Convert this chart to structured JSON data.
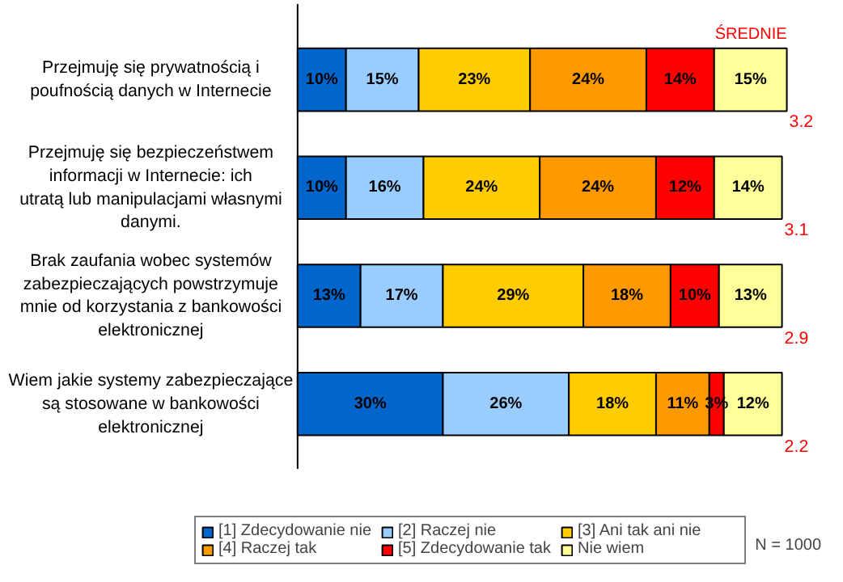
{
  "chart_data": {
    "type": "bar",
    "orientation": "horizontal",
    "stacked": true,
    "tick_labels": "y",
    "legend": "bottom",
    "categories": [
      "Przejmuję się prywatnością i poufnością danych w Internecie",
      "Przejmuję się bezpieczeństwem informacji w Internecie: ich utratą lub manipulacjami własnymi danymi.",
      "Brak zaufania wobec systemów zabezpieczających powstrzymuje mnie od korzystania z bankowości elektronicznej",
      "Wiem jakie systemy zabezpieczające są stosowane w bankowości elektronicznej"
    ],
    "series": [
      {
        "name": "[1] Zdecydowanie nie",
        "color": "#0066cc",
        "values": [
          10,
          10,
          13,
          30
        ],
        "value_labels": [
          "10%",
          "10%",
          "13%",
          "30%"
        ]
      },
      {
        "name": "[2] Raczej nie",
        "color": "#99ccff",
        "values": [
          15,
          16,
          17,
          26
        ],
        "value_labels": [
          "15%",
          "16%",
          "17%",
          "26%"
        ]
      },
      {
        "name": "[3] Ani tak ani nie",
        "color": "#ffcc00",
        "values": [
          23,
          24,
          29,
          18
        ],
        "value_labels": [
          "23%",
          "24%",
          "29%",
          "18%"
        ]
      },
      {
        "name": "[4] Raczej tak",
        "color": "#ff9900",
        "values": [
          24,
          24,
          18,
          11
        ],
        "value_labels": [
          "24%",
          "24%",
          "18%",
          "11%"
        ]
      },
      {
        "name": "[5] Zdecydowanie tak",
        "color": "#ff0000",
        "values": [
          14,
          12,
          10,
          3
        ],
        "value_labels": [
          "14%",
          "12%",
          "10%",
          "3%"
        ]
      },
      {
        "name": "Nie wiem",
        "color": "#ffff99",
        "values": [
          15,
          14,
          13,
          12
        ],
        "value_labels": [
          "15%",
          "14%",
          "13%",
          "12%"
        ]
      }
    ],
    "annotations": [
      "ŚREDNIE",
      "3.2",
      "3.1",
      "2.9",
      "2.2",
      "N = 1000"
    ]
  }
}
